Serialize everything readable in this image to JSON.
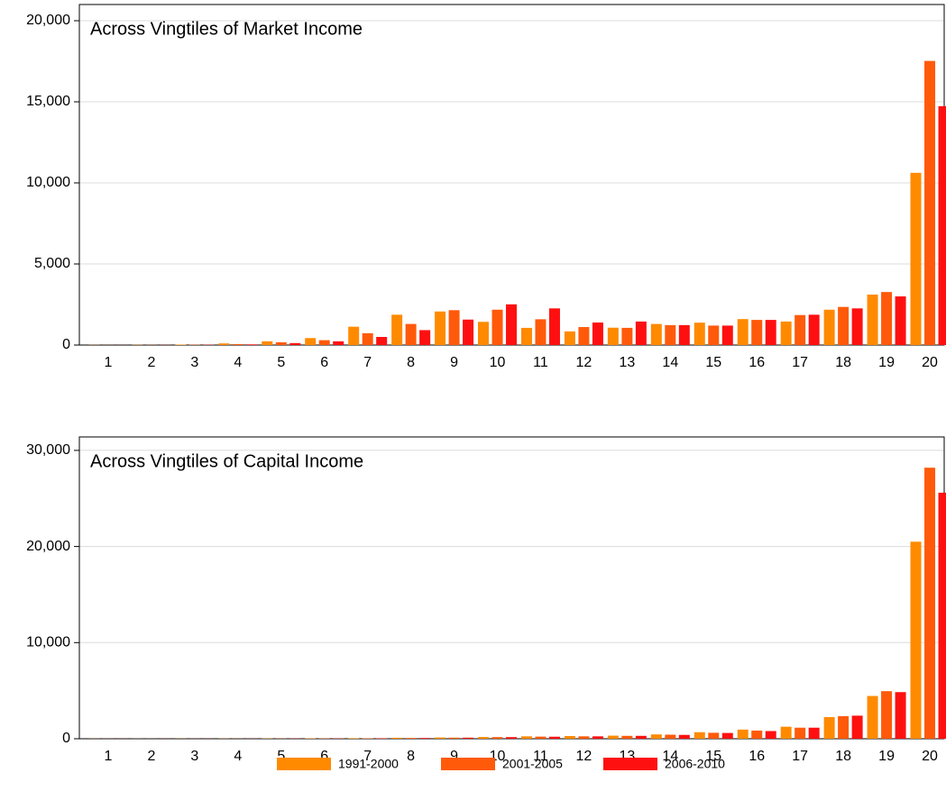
{
  "chart_data": [
    {
      "type": "bar",
      "title": "Across Vingtiles of Market Income",
      "categories": [
        "1",
        "2",
        "3",
        "4",
        "5",
        "6",
        "7",
        "8",
        "9",
        "10",
        "11",
        "12",
        "13",
        "14",
        "15",
        "16",
        "17",
        "18",
        "19",
        "20"
      ],
      "series": [
        {
          "name": "1991-2000",
          "color": "#ff8a00",
          "values": [
            10,
            15,
            30,
            100,
            230,
            430,
            1130,
            1870,
            2070,
            1430,
            1060,
            840,
            1070,
            1300,
            1380,
            1600,
            1450,
            2180,
            3110,
            10620
          ]
        },
        {
          "name": "2001-2005",
          "color": "#ff5a0a",
          "values": [
            5,
            10,
            20,
            60,
            170,
            300,
            730,
            1300,
            2150,
            2180,
            1590,
            1110,
            1060,
            1230,
            1200,
            1550,
            1850,
            2350,
            3270,
            17520
          ]
        },
        {
          "name": "2006-2010",
          "color": "#ff1010",
          "values": [
            5,
            10,
            20,
            40,
            120,
            230,
            500,
            920,
            1570,
            2510,
            2260,
            1390,
            1450,
            1230,
            1200,
            1550,
            1870,
            2260,
            3000,
            14730
          ]
        }
      ],
      "ylim": [
        0,
        21000
      ],
      "yticks": [
        0,
        {
          "value": 5000,
          "label": "5,000"
        },
        {
          "value": 10000,
          "label": "10,000"
        },
        {
          "value": 15000,
          "label": "15,000"
        },
        {
          "value": 20000,
          "label": "20,000"
        }
      ],
      "grid": true
    },
    {
      "type": "bar",
      "title": "Across Vingtiles of Capital Income",
      "categories": [
        "1",
        "2",
        "3",
        "4",
        "5",
        "6",
        "7",
        "8",
        "9",
        "10",
        "11",
        "12",
        "13",
        "14",
        "15",
        "16",
        "17",
        "18",
        "19",
        "20"
      ],
      "series": [
        {
          "color": "#ff8a00",
          "values": [
            10,
            10,
            15,
            20,
            30,
            40,
            60,
            100,
            130,
            180,
            250,
            280,
            320,
            450,
            680,
            950,
            1250,
            2250,
            4450,
            20500
          ]
        },
        {
          "color": "#ff5a0a",
          "values": [
            10,
            10,
            10,
            15,
            25,
            35,
            50,
            80,
            110,
            170,
            220,
            250,
            300,
            420,
            620,
            850,
            1150,
            2350,
            4950,
            28200
          ]
        },
        {
          "color": "#ff1010",
          "values": [
            10,
            10,
            10,
            15,
            25,
            35,
            50,
            80,
            110,
            170,
            210,
            250,
            300,
            400,
            600,
            800,
            1150,
            2400,
            4850,
            25600
          ]
        }
      ],
      "ylim": [
        0,
        31400
      ],
      "yticks": [
        0,
        {
          "value": 10000,
          "label": "10,000"
        },
        {
          "value": 20000,
          "label": "20,000"
        },
        {
          "value": 30000,
          "label": "30,000"
        }
      ],
      "grid": true
    }
  ]
}
